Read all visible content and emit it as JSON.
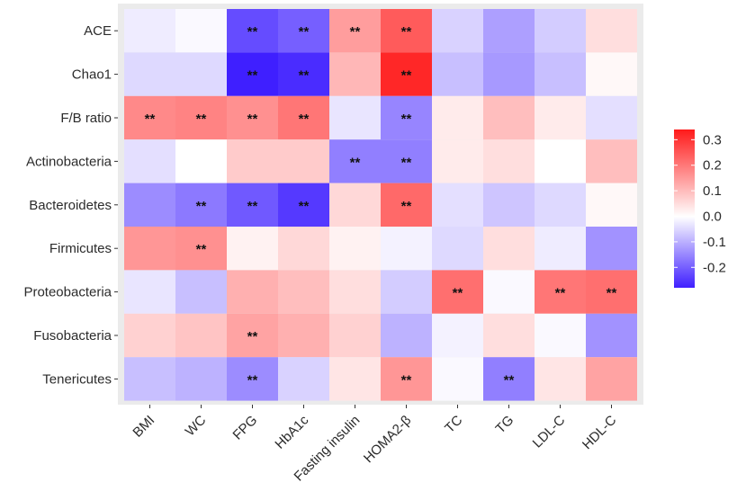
{
  "chart_data": {
    "type": "heatmap",
    "title": "",
    "xlabel": "",
    "ylabel": "",
    "rows": [
      "ACE",
      "Chao1",
      "F/B ratio",
      "Actinobacteria",
      "Bacteroidetes",
      "Firmicutes",
      "Proteobacteria",
      "Fusobacteria",
      "Tenericutes"
    ],
    "columns": [
      "BMI",
      "WC",
      "FPG",
      "HbA1c",
      "Fasting insulin",
      "HOMA2-β",
      "TC",
      "TG",
      "LDL-C",
      "HDL-C"
    ],
    "values": [
      [
        -0.03,
        -0.01,
        -0.28,
        -0.25,
        0.15,
        0.25,
        -0.07,
        -0.15,
        -0.08,
        0.05
      ],
      [
        -0.06,
        -0.06,
        -0.35,
        -0.33,
        0.11,
        0.33,
        -0.1,
        -0.16,
        -0.1,
        0.01
      ],
      [
        0.18,
        0.19,
        0.17,
        0.21,
        -0.04,
        -0.19,
        0.03,
        0.1,
        0.03,
        -0.05
      ],
      [
        -0.05,
        0.0,
        0.08,
        0.08,
        -0.2,
        -0.2,
        0.03,
        0.05,
        0.0,
        0.1
      ],
      [
        -0.18,
        -0.21,
        -0.26,
        -0.31,
        0.06,
        0.23,
        -0.05,
        -0.09,
        -0.06,
        0.01
      ],
      [
        0.16,
        0.17,
        0.02,
        0.06,
        0.02,
        -0.02,
        -0.06,
        0.05,
        -0.03,
        -0.17
      ],
      [
        -0.04,
        -0.1,
        0.12,
        0.1,
        0.05,
        -0.08,
        0.22,
        -0.01,
        0.21,
        0.22
      ],
      [
        0.07,
        0.09,
        0.14,
        0.12,
        0.07,
        -0.12,
        -0.02,
        0.05,
        -0.01,
        -0.17
      ],
      [
        -0.1,
        -0.12,
        -0.18,
        -0.07,
        0.04,
        0.16,
        -0.01,
        -0.2,
        0.04,
        0.14
      ]
    ],
    "significance_marker": "**",
    "significant": [
      [
        0,
        2
      ],
      [
        0,
        3
      ],
      [
        0,
        4
      ],
      [
        0,
        5
      ],
      [
        1,
        2
      ],
      [
        1,
        3
      ],
      [
        1,
        5
      ],
      [
        2,
        0
      ],
      [
        2,
        1
      ],
      [
        2,
        2
      ],
      [
        2,
        3
      ],
      [
        2,
        5
      ],
      [
        3,
        4
      ],
      [
        3,
        5
      ],
      [
        4,
        1
      ],
      [
        4,
        2
      ],
      [
        4,
        3
      ],
      [
        4,
        5
      ],
      [
        5,
        1
      ],
      [
        6,
        6
      ],
      [
        6,
        8
      ],
      [
        6,
        9
      ],
      [
        7,
        2
      ],
      [
        8,
        2
      ],
      [
        8,
        5
      ],
      [
        8,
        7
      ]
    ],
    "color_scale": {
      "low": "#3f1fff",
      "mid": "#ffffff",
      "high": "#ff1a1a",
      "range": [
        -0.35,
        0.35
      ]
    },
    "legend": {
      "position": "right",
      "ticks": [
        0.3,
        0.2,
        0.1,
        0.0,
        -0.1,
        -0.2
      ],
      "tick_labels": [
        "0.3",
        "0.2",
        "0.1",
        "0.0",
        "-0.1",
        "-0.2"
      ],
      "range": [
        -0.28,
        0.34
      ]
    },
    "panel_background": "#ebebeb"
  }
}
